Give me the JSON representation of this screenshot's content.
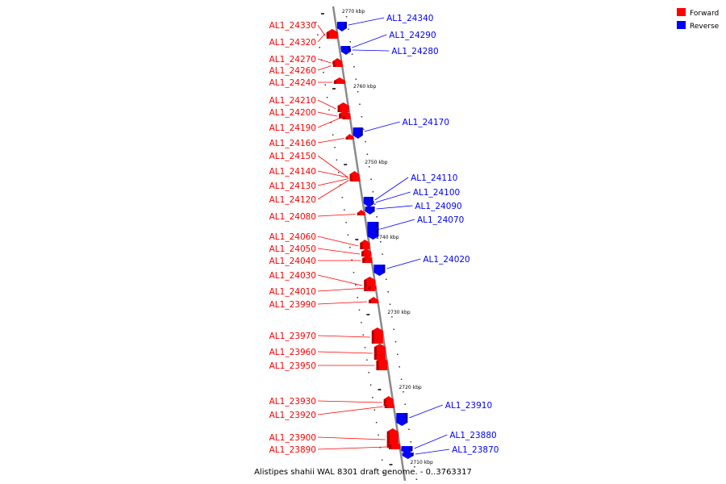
{
  "caption": "Alistipes shahii WAL 8301 draft genome. - 0..3763317",
  "legend": [
    {
      "label": "Forward",
      "color": "#ff0000"
    },
    {
      "label": "Reverse",
      "color": "#0000ff"
    }
  ],
  "colors": {
    "forward": "#ff0000",
    "reverse": "#0000ff",
    "axis": "#888888"
  },
  "ticks": [
    {
      "label": "2770 kbp"
    },
    {
      "label": "2760 kbp"
    },
    {
      "label": "2750 kbp"
    },
    {
      "label": "2740 kbp"
    },
    {
      "label": "2730 kbp"
    },
    {
      "label": "2720 kbp"
    },
    {
      "label": "2710 kbp"
    }
  ],
  "forward_genes": [
    "AL1_24330",
    "AL1_24320",
    "AL1_24270",
    "AL1_24260",
    "AL1_24240",
    "AL1_24210",
    "AL1_24200",
    "AL1_24190",
    "AL1_24160",
    "AL1_24150",
    "AL1_24140",
    "AL1_24130",
    "AL1_24120",
    "AL1_24080",
    "AL1_24060",
    "AL1_24050",
    "AL1_24040",
    "AL1_24030",
    "AL1_24010",
    "AL1_23990",
    "AL1_23970",
    "AL1_23960",
    "AL1_23950",
    "AL1_23930",
    "AL1_23920",
    "AL1_23900",
    "AL1_23890"
  ],
  "reverse_genes": [
    "AL1_24340",
    "AL1_24290",
    "AL1_24280",
    "AL1_24170",
    "AL1_24110",
    "AL1_24100",
    "AL1_24090",
    "AL1_24070",
    "AL1_24020",
    "AL1_23910",
    "AL1_23880",
    "AL1_23870"
  ]
}
